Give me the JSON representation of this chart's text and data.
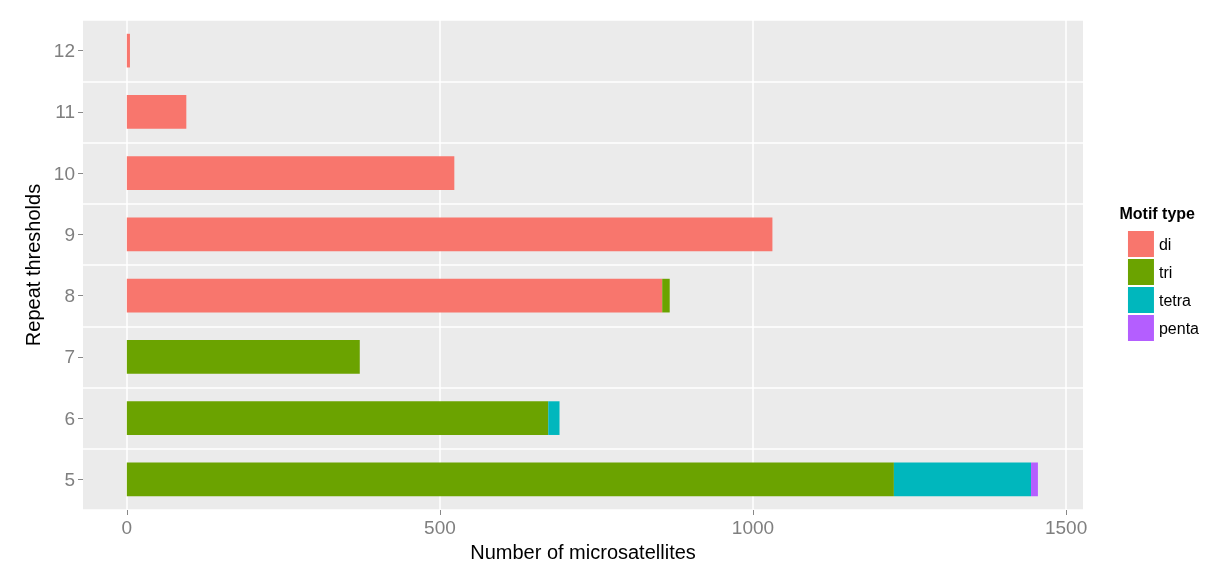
{
  "chart_data": {
    "type": "bar",
    "orientation": "horizontal",
    "stacked": true,
    "xlabel": "Number of microsatellites",
    "ylabel": "Repeat thresholds",
    "legend_title": "Motif type",
    "legend": "right",
    "grid": true,
    "categories": [
      "12",
      "11",
      "10",
      "9",
      "8",
      "7",
      "6",
      "5"
    ],
    "series": [
      {
        "name": "di",
        "color": "#f8766d",
        "values": [
          5,
          95,
          523,
          1031,
          855,
          null,
          null,
          null
        ]
      },
      {
        "name": "tri",
        "color": "#6ba300",
        "values": [
          null,
          null,
          null,
          null,
          12,
          372,
          673,
          1225
        ]
      },
      {
        "name": "tetra",
        "color": "#00b7bd",
        "values": [
          null,
          null,
          null,
          null,
          null,
          null,
          18,
          219
        ]
      },
      {
        "name": "penta",
        "color": "#b45eff",
        "values": [
          null,
          null,
          null,
          null,
          null,
          null,
          null,
          11
        ]
      }
    ],
    "xlim": [
      -70,
      1527
    ],
    "xticks": [
      0,
      500,
      1000,
      1500
    ]
  }
}
